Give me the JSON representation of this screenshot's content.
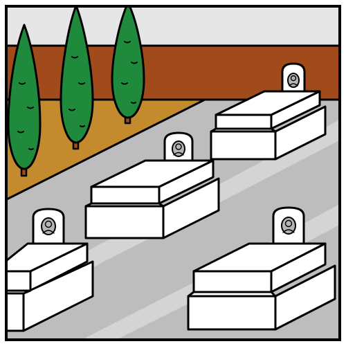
{
  "scene": {
    "subject": "cemetery",
    "colors": {
      "sky": "#e6e6e6",
      "wall": "#a14a1c",
      "soil": "#c38a2e",
      "path": "#bdbdbd",
      "path_light": "#d4d4d4",
      "cypress": "#1f8a3c",
      "trunk": "#a14a1c",
      "tomb": "#ffffff",
      "portrait": "#b5b5b5",
      "outline": "#000000"
    },
    "trees": [
      {
        "name": "cypress-tree-1"
      },
      {
        "name": "cypress-tree-2"
      },
      {
        "name": "cypress-tree-3"
      }
    ],
    "graves": [
      {
        "name": "grave-back-right",
        "icon": "portrait-icon"
      },
      {
        "name": "grave-middle",
        "icon": "portrait-icon"
      },
      {
        "name": "grave-front-left",
        "icon": "portrait-icon"
      },
      {
        "name": "grave-front-right",
        "icon": "portrait-icon"
      }
    ]
  }
}
